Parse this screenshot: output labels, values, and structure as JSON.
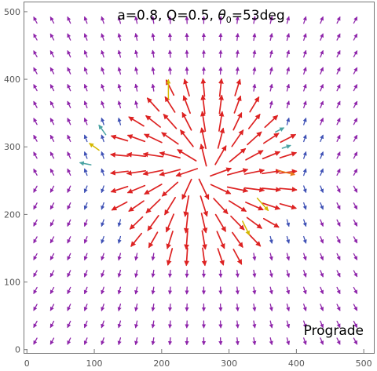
{
  "chart_data": {
    "type": "vector-field",
    "title": "a=0.8, Q=0.5, θ0=53deg",
    "title_parts": {
      "prefix": "a=0.8, Q=0.5, ",
      "symbol": "θ",
      "subscript": "0",
      "suffix": "=53deg"
    },
    "annotation": "Prograde",
    "annotation_placement": "bottom-right",
    "xlim": [
      -5,
      515
    ],
    "ylim": [
      -5,
      515
    ],
    "x_ticks": [
      0,
      100,
      200,
      300,
      400,
      500
    ],
    "y_ticks": [
      0,
      100,
      200,
      300,
      400,
      500
    ],
    "x_tick_labels": [
      "0",
      "100",
      "200",
      "300",
      "400",
      "500"
    ],
    "y_tick_labels": [
      "0",
      "100",
      "200",
      "300",
      "400",
      "500"
    ],
    "grid": false,
    "grid_spacing": 25,
    "field_center": [
      260,
      262
    ],
    "hole_radius": 18,
    "color_scale": [
      "#8e24aa",
      "#3f51b5",
      "#4aa3a3",
      "#d4b800",
      "#e87a1c",
      "#dd2222"
    ],
    "highlighted_vectors": [
      {
        "x": 210,
        "y": 385,
        "dx": 0,
        "dy": 28,
        "color": "#d4b800"
      },
      {
        "x": 112,
        "y": 325,
        "dx": -10,
        "dy": 14,
        "color": "#4aa3a3"
      },
      {
        "x": 100,
        "y": 300,
        "dx": -14,
        "dy": 10,
        "color": "#d4b800"
      },
      {
        "x": 87,
        "y": 275,
        "dx": -16,
        "dy": 3,
        "color": "#4aa3a3"
      },
      {
        "x": 375,
        "y": 325,
        "dx": 12,
        "dy": 6,
        "color": "#4aa3a3"
      },
      {
        "x": 385,
        "y": 300,
        "dx": 12,
        "dy": 4,
        "color": "#4aa3a3"
      },
      {
        "x": 385,
        "y": 262,
        "dx": 24,
        "dy": -6,
        "color": "#e87a1c"
      },
      {
        "x": 350,
        "y": 215,
        "dx": 16,
        "dy": -18,
        "color": "#d4b800"
      },
      {
        "x": 325,
        "y": 180,
        "dx": 10,
        "dy": -20,
        "color": "#d4b800"
      }
    ]
  }
}
